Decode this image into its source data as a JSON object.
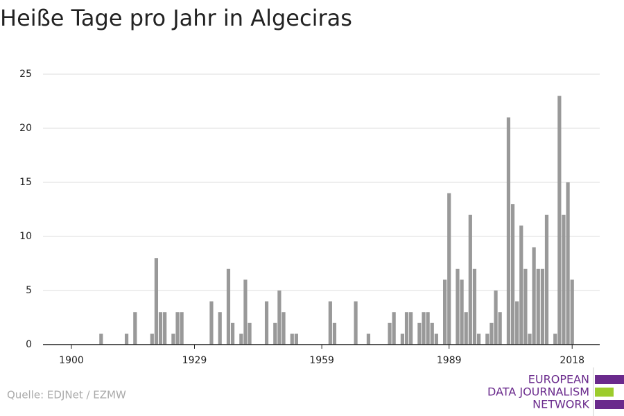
{
  "chart_data": {
    "type": "bar",
    "title": "Heiße Tage pro Jahr in Algeciras",
    "x": [
      1907,
      1913,
      1915,
      1919,
      1920,
      1921,
      1922,
      1924,
      1925,
      1926,
      1933,
      1935,
      1937,
      1938,
      1940,
      1941,
      1942,
      1946,
      1948,
      1949,
      1950,
      1952,
      1953,
      1961,
      1962,
      1967,
      1970,
      1975,
      1976,
      1978,
      1979,
      1980,
      1982,
      1983,
      1984,
      1985,
      1986,
      1988,
      1989,
      1991,
      1992,
      1993,
      1994,
      1995,
      1996,
      1998,
      1999,
      2000,
      2001,
      2003,
      2004,
      2005,
      2006,
      2007,
      2008,
      2009,
      2010,
      2011,
      2012,
      2014,
      2015,
      2016,
      2017,
      2018
    ],
    "values": [
      1,
      1,
      3,
      1,
      8,
      3,
      3,
      1,
      3,
      3,
      4,
      3,
      7,
      2,
      1,
      6,
      2,
      4,
      2,
      5,
      3,
      1,
      1,
      4,
      2,
      4,
      1,
      2,
      3,
      1,
      3,
      3,
      2,
      3,
      3,
      2,
      1,
      6,
      14,
      7,
      6,
      3,
      12,
      7,
      1,
      1,
      2,
      5,
      3,
      21,
      13,
      4,
      11,
      7,
      1,
      9,
      7,
      7,
      12,
      1,
      23,
      12,
      15,
      6
    ],
    "color": "#999999",
    "xlim": [
      1893.3,
      2024.5
    ],
    "xticks": [
      1900,
      1929,
      1959,
      1989,
      2018
    ],
    "ylim": [
      0,
      25
    ],
    "yticks": [
      0,
      5,
      10,
      15,
      20,
      25
    ],
    "grid": true
  },
  "source": "Quelle: EDJNet / EZMW",
  "logo": [
    "EUROPEAN",
    "DATA JOURNALISM",
    "NETWORK"
  ]
}
